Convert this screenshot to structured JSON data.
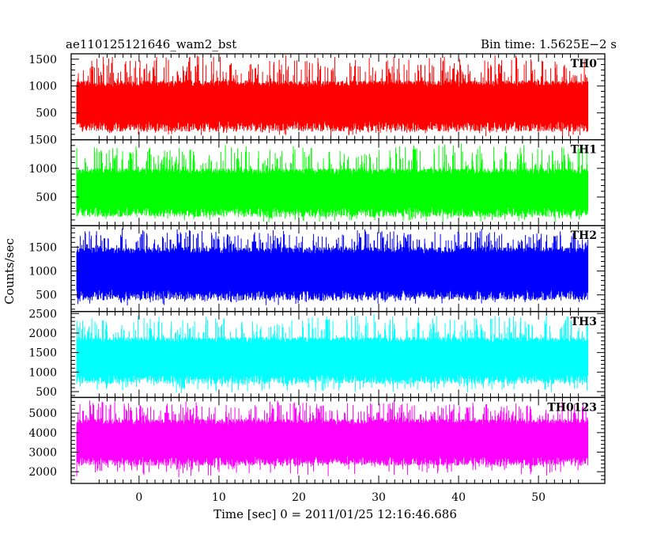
{
  "header": {
    "title": "ae110125121646_wam2_bst",
    "bin_time": "Bin time: 1.5625E−2 s"
  },
  "chart_data": {
    "type": "line",
    "title": "ae110125121646_wam2_bst",
    "subtitle": "Bin time: 1.5625E−2 s",
    "xlabel": "Time [sec] 0 = 2011/01/25 12:16:46.686",
    "ylabel": "Counts/sec",
    "xlim": [
      -8.5,
      58.3
    ],
    "x_data_range": [
      -7.8,
      56.2
    ],
    "x_ticks": [
      0,
      10,
      20,
      30,
      40,
      50
    ],
    "x_tick_labels": [
      "0",
      "10",
      "20",
      "30",
      "40",
      "50"
    ],
    "grid": false,
    "panels": [
      {
        "name": "TH0",
        "color": "#ff0000",
        "ylim": [
          0,
          1600
        ],
        "y_ticks": [
          500,
          1000,
          1500
        ],
        "y_tick_labels": [
          "500",
          "1000",
          "1500"
        ],
        "typical_range": [
          150,
          1100
        ],
        "envelope_range": [
          50,
          1600
        ]
      },
      {
        "name": "TH1",
        "color": "#00ff00",
        "ylim": [
          0,
          1500
        ],
        "y_ticks": [
          500,
          1000,
          1500
        ],
        "y_tick_labels": [
          "500",
          "1000",
          "1500"
        ],
        "typical_range": [
          150,
          1000
        ],
        "envelope_range": [
          50,
          1450
        ]
      },
      {
        "name": "TH2",
        "color": "#0000ff",
        "ylim": [
          150,
          1950
        ],
        "y_ticks": [
          500,
          1000,
          1500
        ],
        "y_tick_labels": [
          "500",
          "1000",
          "1500"
        ],
        "typical_range": [
          380,
          1500
        ],
        "envelope_range": [
          250,
          1900
        ]
      },
      {
        "name": "TH3",
        "color": "#00ffff",
        "ylim": [
          350,
          2550
        ],
        "y_ticks": [
          500,
          1000,
          1500,
          2000,
          2500
        ],
        "y_tick_labels": [
          "500",
          "1000",
          "1500",
          "2000",
          "2500"
        ],
        "typical_range": [
          700,
          1900
        ],
        "envelope_range": [
          450,
          2500
        ]
      },
      {
        "name": "TH0123",
        "color": "#ff00ff",
        "ylim": [
          1400,
          5800
        ],
        "y_ticks": [
          2000,
          3000,
          4000,
          5000
        ],
        "y_tick_labels": [
          "2000",
          "3000",
          "4000",
          "5000"
        ],
        "typical_range": [
          2300,
          4700
        ],
        "envelope_range": [
          1600,
          5700
        ]
      }
    ]
  }
}
